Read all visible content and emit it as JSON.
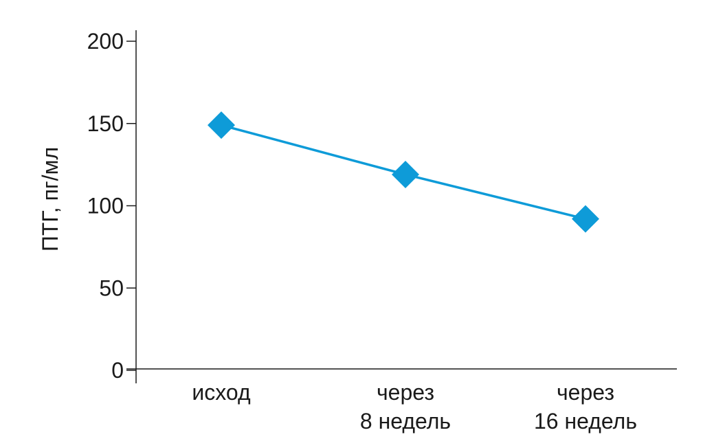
{
  "chart_data": {
    "type": "line",
    "categories": [
      [
        "исход"
      ],
      [
        "через",
        "8 недель"
      ],
      [
        "через",
        "16 недель"
      ]
    ],
    "series": [
      {
        "values": [
          149,
          119,
          92
        ],
        "color": "#0e9bd8",
        "marker": "diamond"
      }
    ],
    "title": "",
    "xlabel": "",
    "ylabel": "ПТГ, пг/мл",
    "ylim": [
      0,
      200
    ],
    "yticks": [
      "0",
      "50",
      "100",
      "150",
      "200"
    ],
    "grid": false,
    "legend": "none",
    "axis_color": "#1a1a1a"
  }
}
